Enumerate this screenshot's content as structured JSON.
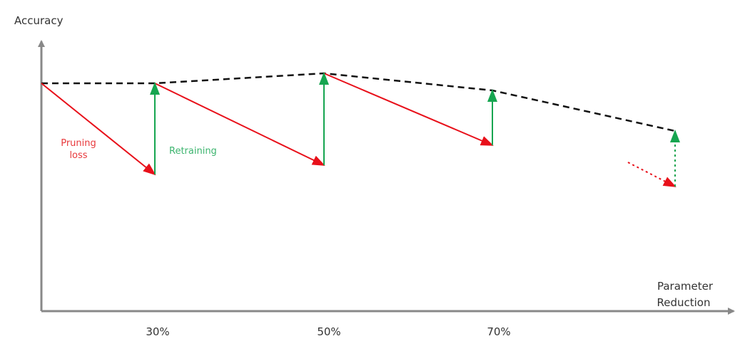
{
  "axes": {
    "y_label": "Accuracy",
    "x_label_lines": [
      "Parameter",
      "Reduction"
    ],
    "x_ticks": [
      "30%",
      "50%",
      "70%"
    ]
  },
  "annotations": {
    "pruning_lines": [
      "Pruning",
      "loss"
    ],
    "retraining": "Retraining"
  }
}
